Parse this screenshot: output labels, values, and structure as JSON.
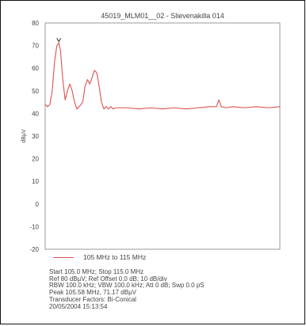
{
  "chart_data": {
    "type": "line",
    "title": "45019_MLM01__02 - Slievenakilla 014",
    "xlabel": "",
    "ylabel": "dBµV",
    "ylim": [
      -20,
      80
    ],
    "yticks": [
      80,
      70,
      60,
      50,
      40,
      30,
      20,
      10,
      0,
      -10,
      -20
    ],
    "xlim_mhz": [
      105.0,
      115.0
    ],
    "grid": false,
    "legend_position": "bottom-left",
    "series": [
      {
        "name": "105 MHz to 115 MHz",
        "color": "#e05050",
        "x": [
          105.0,
          105.1,
          105.2,
          105.3,
          105.4,
          105.5,
          105.58,
          105.65,
          105.75,
          105.85,
          105.95,
          106.05,
          106.15,
          106.25,
          106.35,
          106.45,
          106.6,
          106.7,
          106.8,
          106.9,
          107.0,
          107.1,
          107.2,
          107.3,
          107.4,
          107.5,
          107.6,
          107.7,
          107.8,
          107.9,
          108.0,
          108.5,
          109.0,
          109.5,
          110.0,
          110.5,
          111.0,
          111.5,
          112.0,
          112.3,
          112.4,
          112.5,
          112.7,
          113.0,
          113.5,
          114.0,
          114.5,
          115.0
        ],
        "y": [
          44,
          43,
          44,
          50,
          63,
          70,
          71.17,
          68,
          55,
          46,
          50,
          53,
          50,
          45,
          42,
          43,
          45,
          52,
          55,
          53,
          56,
          59,
          58,
          52,
          45,
          42,
          43,
          42,
          43,
          42,
          42.5,
          42.5,
          42,
          42.5,
          42,
          42.5,
          42,
          42.5,
          43,
          43,
          46,
          43,
          42.5,
          43,
          42.5,
          43,
          42.5,
          43
        ]
      }
    ],
    "annotations": [
      {
        "label": "marker",
        "x": 105.58,
        "y": 71.17
      }
    ]
  },
  "info": {
    "lines": [
      "Start 105.0 MHz; Stop 115.0 MHz",
      "Ref 80 dBµV; Ref Offset 0.0 dB; 10 dB/div",
      "RBW 100.0 kHz; VBW 100.0 kHz; Att 0 dB; Swp 0.0 pS",
      "Peak 105.58 MHz, 71.17 dBµV",
      "Transducer Factors: Bi-Conical",
      "20/05/2004 15:13:54"
    ]
  }
}
